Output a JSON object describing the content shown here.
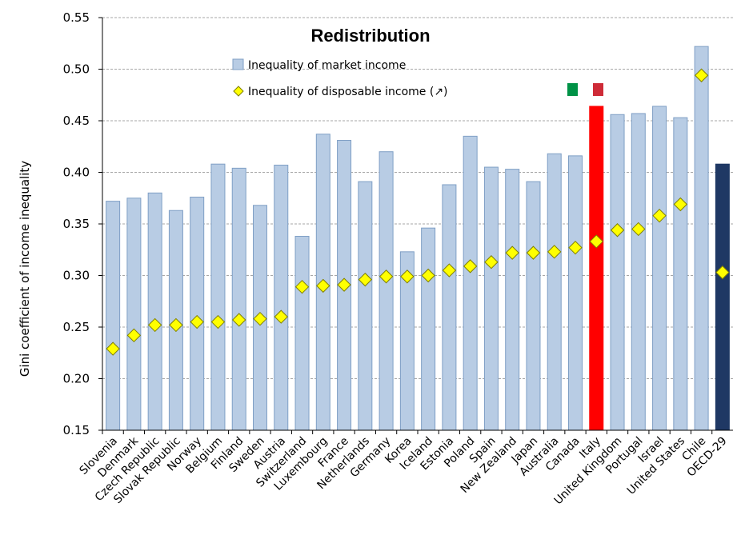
{
  "chart_data": {
    "type": "bar",
    "title": "Redistribution",
    "ylabel": "Gini coefficient of income inequality",
    "ylim": [
      0.15,
      0.55
    ],
    "yticks": [
      "0.15",
      "0.20",
      "0.25",
      "0.30",
      "0.35",
      "0.40",
      "0.45",
      "0.50",
      "0.55"
    ],
    "grid": true,
    "legend_position": "top-center",
    "categories": [
      "Slovenia",
      "Denmark",
      "Czech Republic",
      "Slovak Republic",
      "Norway",
      "Belgium",
      "Finland",
      "Sweden",
      "Austria",
      "Switzerland",
      "Luxembourg",
      "France",
      "Netherlands",
      "Germany",
      "Korea",
      "Iceland",
      "Estonia",
      "Poland",
      "Spain",
      "New Zealand",
      "Japan",
      "Australia",
      "Canada",
      "Italy",
      "United Kingdom",
      "Portugal",
      "Israel",
      "United States",
      "Chile",
      "OECD-29"
    ],
    "series": [
      {
        "name": "Inequality of market income",
        "kind": "bar",
        "color": "#b8cce4",
        "values": [
          0.372,
          0.375,
          0.38,
          0.363,
          0.376,
          0.408,
          0.404,
          0.368,
          0.407,
          0.338,
          0.437,
          0.431,
          0.391,
          0.42,
          0.323,
          0.346,
          0.388,
          0.435,
          0.405,
          0.403,
          0.391,
          0.418,
          0.416,
          0.464,
          0.456,
          0.457,
          0.464,
          0.453,
          0.522,
          0.408
        ]
      },
      {
        "name": "Inequality of disposable income (↗)",
        "kind": "marker",
        "color": "#ffff00",
        "values": [
          0.229,
          0.242,
          0.252,
          0.252,
          0.255,
          0.255,
          0.257,
          0.258,
          0.26,
          0.289,
          0.29,
          0.291,
          0.296,
          0.299,
          0.299,
          0.3,
          0.305,
          0.309,
          0.313,
          0.322,
          0.322,
          0.323,
          0.327,
          0.333,
          0.344,
          0.345,
          0.358,
          0.369,
          0.494,
          0.303
        ]
      }
    ],
    "highlight": {
      "Italy": "#ff0000",
      "OECD-29": "#1f3864"
    },
    "flag_colors": [
      "#009246",
      "#ce2b37"
    ]
  }
}
